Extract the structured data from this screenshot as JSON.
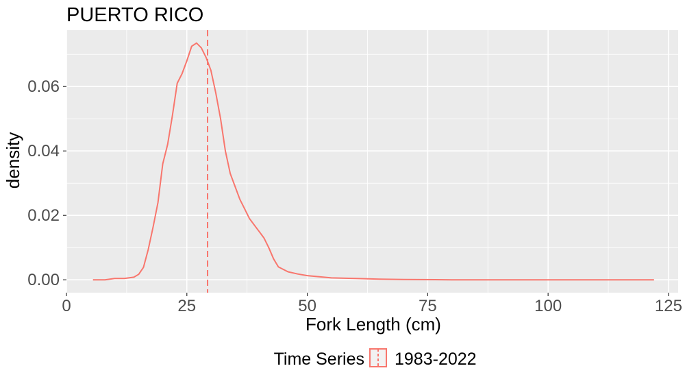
{
  "chart_data": {
    "type": "line",
    "title": "PUERTO RICO",
    "xlabel": "Fork Length (cm)",
    "ylabel": "density",
    "xlim": [
      0,
      127
    ],
    "ylim": [
      -0.004,
      0.0775
    ],
    "x_ticks": [
      0,
      25,
      50,
      75,
      100,
      125
    ],
    "x_tick_labels": [
      "0",
      "25",
      "50",
      "75",
      "100",
      "125"
    ],
    "y_ticks": [
      0.0,
      0.02,
      0.04,
      0.06
    ],
    "y_tick_labels": [
      "0.00",
      "0.02",
      "0.04",
      "0.06"
    ],
    "grid": true,
    "legend": {
      "title": "Time Series",
      "position": "bottom",
      "entries": [
        "1983-2022"
      ]
    },
    "colors": {
      "series": "#f8766d",
      "panel": "#ebebeb",
      "grid": "#ffffff"
    },
    "series": [
      {
        "name": "1983-2022",
        "x": [
          5.5,
          8,
          10,
          12,
          14,
          15,
          16,
          17,
          18,
          19,
          20,
          21,
          22,
          23,
          24,
          25,
          26,
          27,
          28,
          29,
          30,
          31,
          32,
          33,
          34,
          35,
          36,
          37,
          38,
          39,
          40,
          41,
          42,
          43,
          44,
          46,
          48,
          50,
          55,
          60,
          65,
          70,
          80,
          90,
          100,
          110,
          122
        ],
        "y": [
          0.0,
          0.0,
          0.0004,
          0.0004,
          0.0008,
          0.0017,
          0.0039,
          0.0095,
          0.0165,
          0.024,
          0.036,
          0.042,
          0.051,
          0.061,
          0.064,
          0.068,
          0.0725,
          0.0735,
          0.072,
          0.069,
          0.065,
          0.058,
          0.05,
          0.04,
          0.033,
          0.029,
          0.025,
          0.022,
          0.019,
          0.017,
          0.015,
          0.013,
          0.01,
          0.0065,
          0.004,
          0.0025,
          0.0018,
          0.0013,
          0.0006,
          0.0004,
          0.0002,
          0.0001,
          0.0,
          0.0,
          0.0,
          0.0,
          0.0
        ]
      }
    ],
    "vline": {
      "x": 29.3,
      "style": "dashed"
    }
  }
}
